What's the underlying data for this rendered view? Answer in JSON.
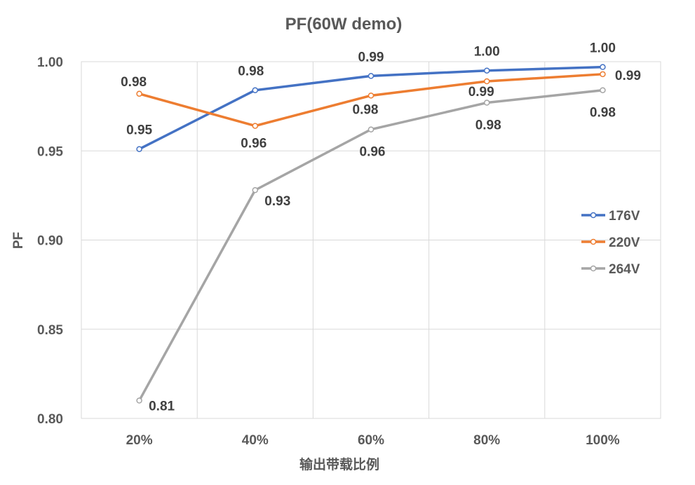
{
  "chart_data": {
    "type": "line",
    "title": "PF(60W demo)",
    "xlabel": "输出带载比例",
    "ylabel": "PF",
    "categories": [
      "20%",
      "40%",
      "60%",
      "80%",
      "100%"
    ],
    "ylim": [
      0.8,
      1.0
    ],
    "yticks": [
      "0.80",
      "0.85",
      "0.90",
      "0.95",
      "1.00"
    ],
    "grid": true,
    "legend_position": "right",
    "series": [
      {
        "name": "176V",
        "color": "#4472C4",
        "values": [
          0.951,
          0.984,
          0.992,
          0.995,
          0.997
        ],
        "labels": [
          "0.95",
          "0.98",
          "0.99",
          "1.00",
          "1.00"
        ],
        "label_offsets": [
          [
            0,
            -28
          ],
          [
            -6,
            -28
          ],
          [
            0,
            -28
          ],
          [
            0,
            -28
          ],
          [
            0,
            -28
          ]
        ]
      },
      {
        "name": "220V",
        "color": "#ED7D31",
        "values": [
          0.982,
          0.964,
          0.981,
          0.989,
          0.993
        ],
        "labels": [
          "0.98",
          "0.96",
          "0.98",
          "0.99",
          "0.99"
        ],
        "label_offsets": [
          [
            -8,
            -18
          ],
          [
            -2,
            24
          ],
          [
            -8,
            19
          ],
          [
            -8,
            14
          ],
          [
            36,
            1
          ]
        ]
      },
      {
        "name": "264V",
        "color": "#A5A5A5",
        "values": [
          0.81,
          0.928,
          0.962,
          0.977,
          0.984
        ],
        "labels": [
          "0.81",
          "0.93",
          "0.96",
          "0.98",
          "0.98"
        ],
        "label_offsets": [
          [
            32,
            7
          ],
          [
            32,
            15
          ],
          [
            2,
            31
          ],
          [
            2,
            31
          ],
          [
            0,
            31
          ]
        ]
      }
    ]
  }
}
